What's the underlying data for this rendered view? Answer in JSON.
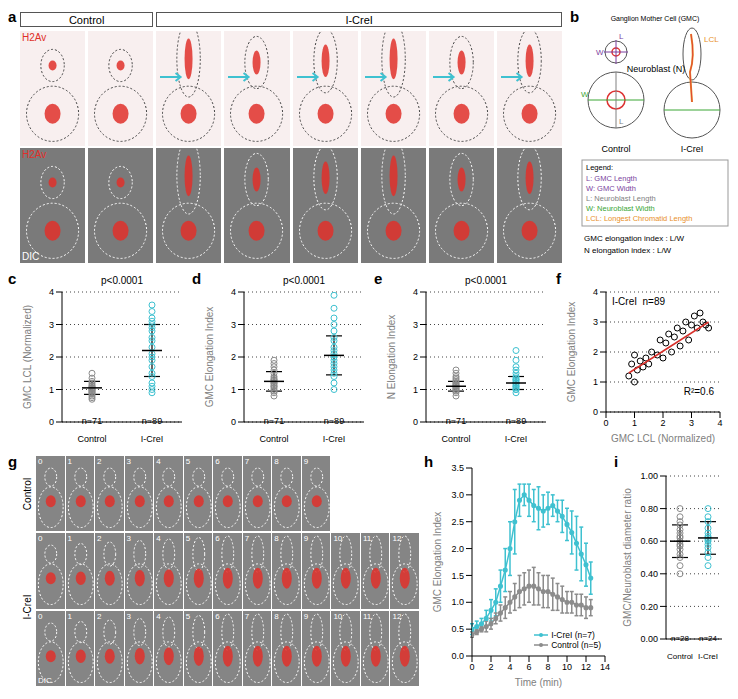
{
  "image_panels": [
    {
      "panel": "a",
      "groups": [
        {
          "label": "Control",
          "columns": 2
        },
        {
          "label": "I-CreI",
          "columns": 6
        }
      ],
      "channels": [
        "H2Av",
        "DIC"
      ]
    },
    {
      "panel": "g",
      "channel": "DIC",
      "groups": [
        {
          "label": "Control",
          "rows": [
            [
              "0",
              "1",
              "2",
              "3",
              "4",
              "5",
              "6",
              "7",
              "8",
              "9"
            ]
          ]
        },
        {
          "label": "I-CreI",
          "rows": [
            [
              "0",
              "1",
              "2",
              "3",
              "4",
              "5",
              "6",
              "7",
              "8",
              "9",
              "10",
              "11",
              "12"
            ],
            [
              "0",
              "1",
              "2",
              "3",
              "4",
              "5",
              "6",
              "7",
              "8",
              "9",
              "10",
              "11",
              "12"
            ]
          ]
        }
      ]
    }
  ],
  "diagram": {
    "panel": "b",
    "title": "Ganglion Mother Cell (GMC)",
    "neuroblast_label": "Neuroblast (N)",
    "conditions": [
      "Control",
      "I-CreI"
    ],
    "dimension_labels": {
      "length": "L",
      "width": "W",
      "lcl": "LCL"
    },
    "legend_title": "Legend:",
    "legend": [
      {
        "text": "L: GMC Length",
        "color": "#7b3f9e"
      },
      {
        "text": "W: GMC Width",
        "color": "#7b3f9e"
      },
      {
        "text": "L: Neuroblast Length",
        "color": "#808080"
      },
      {
        "text": "W: Neuroblast Width",
        "color": "#3aa635"
      },
      {
        "text": "LCL: Longest Chromatid Length",
        "color": "#e8902a"
      }
    ],
    "formulas": [
      "GMC elongation index : L/W",
      "N elongation index : L/W"
    ]
  },
  "chart_data": [
    {
      "panel": "c",
      "type": "dot",
      "title": "p<0.0001",
      "ylabel": "GMC LCL (Normalized)",
      "ylim": [
        0,
        4
      ],
      "yticks": [
        0,
        1,
        2,
        3,
        4
      ],
      "grid": true,
      "series": [
        {
          "name": "Control",
          "color": "#8c8c8c",
          "label": "n=71",
          "mean": 1.05,
          "sd": 0.2,
          "values": [
            0.7,
            0.75,
            0.8,
            0.85,
            0.9,
            0.9,
            0.95,
            0.95,
            1.0,
            1.0,
            1.0,
            1.05,
            1.05,
            1.1,
            1.1,
            1.15,
            1.2,
            1.25,
            1.35,
            1.5
          ]
        },
        {
          "name": "I-CreI",
          "color": "#3fc1d0",
          "label": "n=89",
          "mean": 2.2,
          "sd": 0.8,
          "values": [
            0.9,
            1.0,
            1.1,
            1.2,
            1.4,
            1.5,
            1.7,
            1.9,
            2.0,
            2.1,
            2.3,
            2.5,
            2.6,
            2.8,
            2.9,
            3.0,
            3.1,
            3.2,
            3.4,
            3.6
          ]
        }
      ]
    },
    {
      "panel": "d",
      "type": "dot",
      "title": "p<0.0001",
      "ylabel": "GMC Elongation Index",
      "ylim": [
        0,
        4
      ],
      "yticks": [
        0,
        1,
        2,
        3,
        4
      ],
      "grid": true,
      "series": [
        {
          "name": "Control",
          "color": "#8c8c8c",
          "label": "n=71",
          "mean": 1.25,
          "sd": 0.3,
          "values": [
            0.8,
            0.9,
            0.95,
            1.0,
            1.05,
            1.1,
            1.1,
            1.15,
            1.2,
            1.2,
            1.25,
            1.3,
            1.3,
            1.35,
            1.4,
            1.5,
            1.6,
            1.7,
            1.8,
            1.9
          ]
        },
        {
          "name": "I-CreI",
          "color": "#3fc1d0",
          "label": "n=89",
          "mean": 2.05,
          "sd": 0.6,
          "values": [
            1.0,
            1.2,
            1.4,
            1.5,
            1.6,
            1.7,
            1.8,
            1.9,
            2.0,
            2.0,
            2.1,
            2.2,
            2.3,
            2.5,
            2.6,
            2.8,
            3.0,
            3.2,
            3.5,
            3.9
          ]
        }
      ]
    },
    {
      "panel": "e",
      "type": "dot",
      "title": "p<0.0001",
      "ylabel": "N Elongation Index",
      "ylim": [
        0,
        4
      ],
      "yticks": [
        0,
        1,
        2,
        3,
        4
      ],
      "grid": true,
      "series": [
        {
          "name": "Control",
          "color": "#8c8c8c",
          "label": "n=71",
          "mean": 1.1,
          "sd": 0.15,
          "values": [
            0.8,
            0.9,
            0.95,
            1.0,
            1.0,
            1.05,
            1.05,
            1.1,
            1.1,
            1.1,
            1.15,
            1.15,
            1.2,
            1.2,
            1.25,
            1.3,
            1.35,
            1.4,
            1.5,
            1.6
          ]
        },
        {
          "name": "I-CreI",
          "color": "#3fc1d0",
          "label": "n=89",
          "mean": 1.2,
          "sd": 0.2,
          "values": [
            0.9,
            1.0,
            1.0,
            1.05,
            1.1,
            1.1,
            1.15,
            1.2,
            1.2,
            1.2,
            1.25,
            1.3,
            1.3,
            1.35,
            1.4,
            1.5,
            1.6,
            1.7,
            1.9,
            2.2
          ]
        }
      ]
    },
    {
      "panel": "f",
      "type": "scatter",
      "annotations": [
        "I-CreI",
        "n=89",
        "R²=0.6"
      ],
      "xlabel": "GMC LCL (Normalized)",
      "ylabel": "GMC Elongation Index",
      "xlim": [
        0,
        4
      ],
      "xticks": [
        0,
        1,
        2,
        3,
        4
      ],
      "ylim": [
        0,
        4
      ],
      "yticks": [
        0,
        1,
        2,
        3,
        4
      ],
      "grid": true,
      "color": "#000000",
      "marker": "open_circle",
      "x": [
        0.8,
        0.9,
        1.0,
        1.0,
        1.1,
        1.2,
        1.3,
        1.4,
        1.5,
        1.6,
        1.8,
        1.9,
        2.0,
        2.1,
        2.2,
        2.3,
        2.4,
        2.5,
        2.6,
        2.7,
        2.8,
        2.9,
        3.0,
        3.1,
        3.2,
        3.3,
        3.4,
        3.5,
        3.6
      ],
      "values": [
        1.2,
        1.6,
        1.0,
        1.9,
        1.4,
        1.7,
        1.5,
        1.8,
        1.6,
        2.0,
        1.9,
        2.4,
        1.8,
        2.3,
        2.6,
        2.0,
        2.5,
        2.8,
        2.2,
        2.7,
        3.0,
        2.4,
        2.9,
        3.2,
        2.8,
        3.3,
        3.0,
        2.9,
        2.8
      ],
      "fit_line": {
        "color": "#d9302b",
        "x": [
          0.8,
          3.6
        ],
        "values": [
          1.3,
          3.0
        ]
      }
    },
    {
      "panel": "h",
      "type": "line",
      "xlabel": "Time (min)",
      "ylabel": "GMC Elongation Index",
      "legend": "lower right",
      "xlim": [
        0,
        14
      ],
      "xticks": [
        0,
        2,
        4,
        6,
        8,
        10,
        12,
        14
      ],
      "ylim": [
        0,
        3.5
      ],
      "yticks": [
        {
          "value": 0,
          "label": "0.0"
        },
        0.5,
        {
          "value": 1,
          "label": "1.0"
        },
        1.5,
        {
          "value": 2,
          "label": "2.0"
        },
        2.5,
        {
          "value": 3,
          "label": "3.0"
        },
        3.5
      ],
      "x": [
        0,
        0.5,
        1,
        1.5,
        2,
        2.5,
        3,
        3.5,
        4,
        4.5,
        5,
        5.5,
        6,
        6.5,
        7,
        7.5,
        8,
        8.5,
        9,
        9.5,
        10,
        10.5,
        11,
        11.5,
        12,
        12.5
      ],
      "series": [
        {
          "name": "I-CreI (n=7)",
          "color": "#3fc1d0",
          "marker": "circle",
          "values": [
            0.5,
            0.55,
            0.6,
            0.7,
            0.85,
            1.0,
            1.3,
            1.6,
            2.0,
            2.5,
            2.9,
            3.0,
            2.9,
            2.8,
            2.75,
            2.7,
            2.75,
            2.8,
            2.7,
            2.6,
            2.45,
            2.3,
            2.1,
            1.9,
            1.7,
            1.45
          ],
          "errors": [
            0.1,
            0.1,
            0.1,
            0.15,
            0.2,
            0.25,
            0.3,
            0.4,
            0.5,
            0.6,
            0.3,
            0.2,
            0.3,
            0.3,
            0.4,
            0.3,
            0.3,
            0.2,
            0.2,
            0.3,
            0.3,
            0.4,
            0.5,
            0.5,
            0.4,
            0.3
          ]
        },
        {
          "name": "Control (n=5)",
          "color": "#8c8c8c",
          "marker": "circle",
          "values": [
            0.4,
            0.45,
            0.5,
            0.55,
            0.6,
            0.7,
            0.8,
            0.9,
            1.0,
            1.1,
            1.2,
            1.25,
            1.3,
            1.3,
            1.25,
            1.2,
            1.2,
            1.15,
            1.1,
            1.05,
            1.0,
            1.0,
            0.95,
            0.95,
            0.9,
            0.9
          ],
          "errors": [
            0.05,
            0.05,
            0.05,
            0.1,
            0.1,
            0.1,
            0.15,
            0.2,
            0.2,
            0.25,
            0.3,
            0.3,
            0.3,
            0.35,
            0.3,
            0.3,
            0.3,
            0.3,
            0.25,
            0.25,
            0.2,
            0.2,
            0.2,
            0.2,
            0.2,
            0.15
          ]
        }
      ]
    },
    {
      "panel": "i",
      "type": "dot",
      "ylabel": "GMC/Neuroblast diameter ratio",
      "ylim": [
        0,
        1
      ],
      "yticks": [
        {
          "value": 0,
          "label": "0.00"
        },
        {
          "value": 0.2,
          "label": "0.20"
        },
        {
          "value": 0.4,
          "label": "0.40"
        },
        {
          "value": 0.6,
          "label": "0.60"
        },
        {
          "value": 0.8,
          "label": "0.80"
        },
        {
          "value": 1,
          "label": "1.00"
        }
      ],
      "grid": true,
      "series": [
        {
          "name": "Control",
          "color": "#8c8c8c",
          "label": "n=28",
          "mean": 0.6,
          "sd": 0.1,
          "values": [
            0.4,
            0.45,
            0.5,
            0.52,
            0.55,
            0.57,
            0.58,
            0.6,
            0.6,
            0.62,
            0.63,
            0.65,
            0.67,
            0.7,
            0.72,
            0.75,
            0.8
          ]
        },
        {
          "name": "I-CreI",
          "color": "#3fc1d0",
          "label": "n=24",
          "mean": 0.62,
          "sd": 0.1,
          "values": [
            0.45,
            0.5,
            0.53,
            0.56,
            0.58,
            0.6,
            0.61,
            0.62,
            0.63,
            0.65,
            0.68,
            0.72,
            0.75,
            0.8
          ]
        }
      ]
    }
  ]
}
